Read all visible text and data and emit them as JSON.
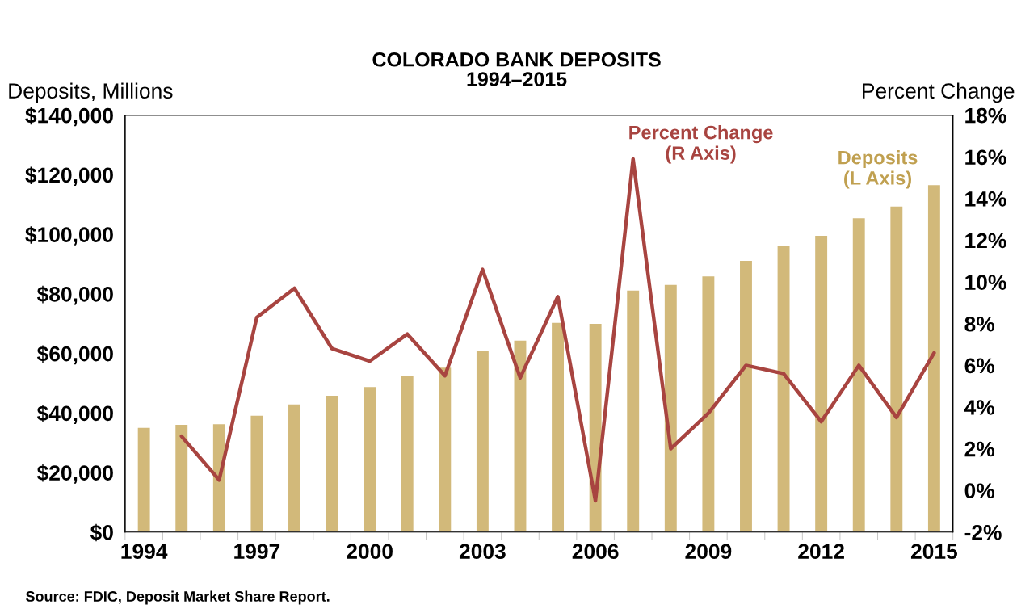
{
  "chart_data": {
    "type": "bar",
    "title": "COLORADO BANK DEPOSITS",
    "subtitle": "1994–2015",
    "ylabel": "Deposits, Millions",
    "y2label": "Percent Change",
    "categories": [
      "1994",
      null,
      null,
      "1997",
      null,
      null,
      "2000",
      null,
      null,
      "2003",
      null,
      null,
      "2006",
      null,
      null,
      "2009",
      null,
      null,
      "2012",
      null,
      null,
      "2015"
    ],
    "series": [
      {
        "name": "Deposits\n(L Axis)",
        "color": "#d2b97a",
        "values": [
          35000,
          36000,
          36200,
          39100,
          42900,
          45800,
          48700,
          52300,
          55200,
          61000,
          64300,
          70300,
          69900,
          81100,
          83000,
          85900,
          91100,
          96200,
          99500,
          105400,
          109300,
          116500
        ]
      },
      {
        "name": "Percent Change\n(R Axis)",
        "type": "line",
        "axis": "y2",
        "color": "#a84440",
        "values": [
          null,
          2.6,
          0.5,
          8.3,
          9.7,
          6.8,
          6.2,
          7.5,
          5.5,
          10.6,
          5.4,
          9.3,
          -0.5,
          15.9,
          2.0,
          3.7,
          6.0,
          5.6,
          3.3,
          6.0,
          3.5,
          6.6
        ]
      }
    ],
    "ylim": [
      0,
      140000
    ],
    "yticks": [
      {
        "value": 0,
        "label": "$0"
      },
      {
        "value": 20000,
        "label": "$20,000"
      },
      {
        "value": 40000,
        "label": "$40,000"
      },
      {
        "value": 60000,
        "label": "$60,000"
      },
      {
        "value": 80000,
        "label": "$80,000"
      },
      {
        "value": 100000,
        "label": "$100,000"
      },
      {
        "value": 120000,
        "label": "$120,000"
      },
      {
        "value": 140000,
        "label": "$140,000"
      }
    ],
    "y2lim": [
      -2,
      18
    ],
    "y2ticks": [
      {
        "value": -2,
        "label": "-2%"
      },
      {
        "value": 0,
        "label": "0%"
      },
      {
        "value": 2,
        "label": "2%"
      },
      {
        "value": 4,
        "label": "4%"
      },
      {
        "value": 6,
        "label": "6%"
      },
      {
        "value": 8,
        "label": "8%"
      },
      {
        "value": 10,
        "label": "10%"
      },
      {
        "value": 12,
        "label": "12%"
      },
      {
        "value": 14,
        "label": "14%"
      },
      {
        "value": 16,
        "label": "16%"
      },
      {
        "value": 18,
        "label": "18%"
      }
    ],
    "grid": false,
    "legend": false,
    "marker": "none",
    "line_style": "solid",
    "annotations": [
      "Source: FDIC, Deposit Market Share Report."
    ]
  }
}
